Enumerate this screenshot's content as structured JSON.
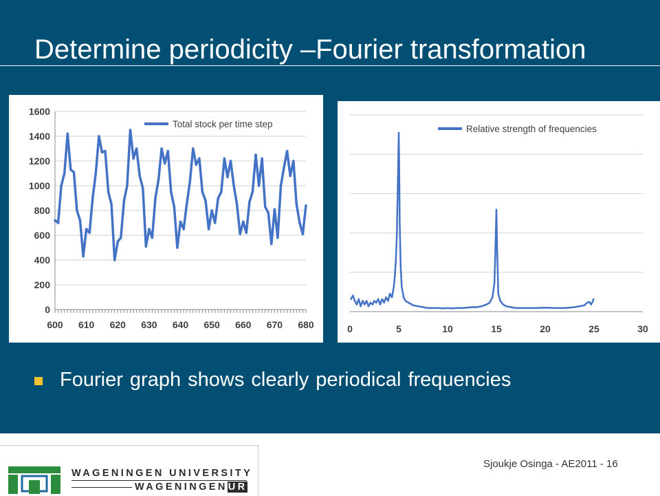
{
  "slide": {
    "title": "Determine periodicity –Fourier transformation",
    "bullet": "Fourier graph shows clearly periodical frequencies",
    "accent_color": "#f2c12e",
    "background_color": "#024f73"
  },
  "footer": {
    "credit": "Sjoukje Osinga - AE2011 - 16",
    "logo": {
      "line1": "WAGENINGEN UNIVERSITY",
      "line2_prefix": "WAGENINGEN",
      "line2_badge": "UR"
    }
  },
  "chart_data": [
    {
      "type": "line",
      "legend": "Total stock per time step",
      "legend_position": "top-right",
      "series_color": "#4472c4",
      "grid": true,
      "xlim": [
        600,
        680
      ],
      "ylim": [
        0,
        1600
      ],
      "xticks": [
        "600",
        "610",
        "620",
        "630",
        "640",
        "650",
        "660",
        "670",
        "680"
      ],
      "yticks": [
        "0",
        "200",
        "400",
        "600",
        "800",
        "1000",
        "1200",
        "1400",
        "1600"
      ],
      "x": [
        600,
        601,
        602,
        603,
        604,
        605,
        606,
        607,
        608,
        609,
        610,
        611,
        612,
        613,
        614,
        615,
        616,
        617,
        618,
        619,
        620,
        621,
        622,
        623,
        624,
        625,
        626,
        627,
        628,
        629,
        630,
        631,
        632,
        633,
        634,
        635,
        636,
        637,
        638,
        639,
        640,
        641,
        642,
        643,
        644,
        645,
        646,
        647,
        648,
        649,
        650,
        651,
        652,
        653,
        654,
        655,
        656,
        657,
        658,
        659,
        660,
        661,
        662,
        663,
        664,
        665,
        666,
        667,
        668,
        669,
        670,
        671,
        672,
        673,
        674,
        675,
        676,
        677,
        678,
        679,
        680
      ],
      "y": [
        720,
        700,
        1000,
        1100,
        1420,
        1130,
        1110,
        800,
        720,
        430,
        650,
        620,
        900,
        1100,
        1400,
        1270,
        1280,
        950,
        850,
        400,
        550,
        580,
        880,
        1000,
        1450,
        1220,
        1300,
        1080,
        980,
        510,
        650,
        580,
        900,
        1050,
        1300,
        1180,
        1280,
        950,
        830,
        500,
        710,
        650,
        850,
        1030,
        1300,
        1170,
        1220,
        950,
        880,
        650,
        800,
        700,
        900,
        950,
        1220,
        1070,
        1200,
        1000,
        850,
        610,
        710,
        620,
        870,
        950,
        1250,
        1000,
        1220,
        830,
        780,
        530,
        810,
        580,
        1000,
        1150,
        1280,
        1080,
        1200,
        850,
        700,
        610,
        840
      ]
    },
    {
      "type": "line",
      "legend": "Relative strength of frequencies",
      "legend_position": "top-right",
      "series_color": "#4472c4",
      "grid": true,
      "xlim": [
        0,
        30
      ],
      "ylim": [
        0,
        1.1
      ],
      "xticks": [
        "0",
        "5",
        "10",
        "15",
        "20",
        "25",
        "30"
      ],
      "x": [
        0.1,
        0.3,
        0.5,
        0.7,
        0.9,
        1.1,
        1.3,
        1.5,
        1.7,
        1.9,
        2.1,
        2.3,
        2.5,
        2.7,
        2.9,
        3.1,
        3.3,
        3.5,
        3.7,
        3.9,
        4.1,
        4.3,
        4.5,
        4.6,
        4.7,
        4.8,
        4.9,
        4.95,
        5.0,
        5.05,
        5.1,
        5.2,
        5.3,
        5.5,
        5.7,
        6.0,
        6.5,
        7,
        7.5,
        8,
        8.5,
        9,
        9.5,
        10,
        10.5,
        11,
        11.5,
        12,
        12.5,
        13,
        13.5,
        14,
        14.3,
        14.6,
        14.8,
        14.9,
        15.0,
        15.1,
        15.2,
        15.4,
        15.7,
        16,
        16.5,
        17,
        18,
        19,
        20,
        21,
        22,
        23,
        23.5,
        24,
        24.3,
        24.5,
        24.7,
        24.85,
        24.95
      ],
      "y": [
        0.07,
        0.09,
        0.06,
        0.04,
        0.07,
        0.03,
        0.06,
        0.04,
        0.06,
        0.03,
        0.05,
        0.04,
        0.06,
        0.05,
        0.07,
        0.04,
        0.07,
        0.05,
        0.08,
        0.06,
        0.1,
        0.08,
        0.14,
        0.2,
        0.28,
        0.42,
        0.7,
        0.85,
        1.0,
        0.8,
        0.5,
        0.25,
        0.14,
        0.08,
        0.06,
        0.05,
        0.035,
        0.03,
        0.025,
        0.02,
        0.02,
        0.02,
        0.018,
        0.02,
        0.018,
        0.02,
        0.02,
        0.022,
        0.025,
        0.025,
        0.03,
        0.04,
        0.05,
        0.08,
        0.16,
        0.35,
        0.57,
        0.3,
        0.1,
        0.06,
        0.04,
        0.03,
        0.025,
        0.02,
        0.02,
        0.02,
        0.022,
        0.02,
        0.02,
        0.025,
        0.03,
        0.035,
        0.05,
        0.055,
        0.04,
        0.055,
        0.07
      ]
    }
  ]
}
